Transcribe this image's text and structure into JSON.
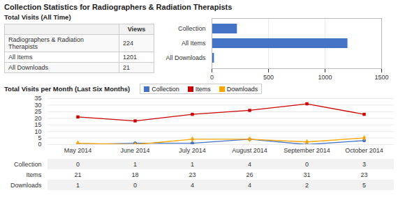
{
  "chart_data": [
    {
      "type": "table",
      "title": "Collection Statistics for Radiographers & Radiation Therapists",
      "subtitle": "Total Visits (All Time)",
      "columns": [
        "Views"
      ],
      "categories": [
        "Radiographers & Radiation\nTherapists",
        "All Items",
        "All Downloads"
      ],
      "values": [
        224,
        1201,
        21
      ]
    },
    {
      "type": "bar",
      "orientation": "horizontal",
      "categories": [
        "Collection",
        "All Items",
        "All Downloads"
      ],
      "values": [
        224,
        1201,
        21
      ],
      "color": "#4472C4",
      "xlim": [
        0,
        1500
      ],
      "xticks": [
        0,
        500,
        1000,
        1500
      ],
      "grid": true
    },
    {
      "type": "line",
      "subtitle": "Total Visits per Month (Last Six Months)",
      "categories": [
        "May 2014",
        "June 2014",
        "July 2014",
        "August 2014",
        "September 2014",
        "October 2014"
      ],
      "series": [
        {
          "name": "Collection",
          "color": "#4472C4",
          "marker": "circle",
          "values": [
            0,
            1,
            1,
            4,
            0,
            3
          ]
        },
        {
          "name": "Items",
          "color": "#CC0000",
          "marker": "square",
          "values": [
            21,
            18,
            23,
            26,
            31,
            23
          ]
        },
        {
          "name": "Downloads",
          "color": "#FFA500",
          "marker": "diamond",
          "values": [
            1,
            0,
            4,
            4,
            2,
            5
          ]
        }
      ],
      "ylim": [
        0,
        35
      ],
      "yticks": [
        0,
        5,
        10,
        15,
        20,
        25,
        30,
        35
      ],
      "grid": true,
      "legend": "top-left",
      "tick_labels": "y"
    },
    {
      "type": "table",
      "categories": [
        "May 2014",
        "June 2014",
        "July 2014",
        "August 2014",
        "September 2014",
        "October 2014"
      ],
      "series": [
        {
          "name": "Collection",
          "values": [
            0,
            1,
            1,
            4,
            0,
            3
          ]
        },
        {
          "name": "Items",
          "values": [
            21,
            18,
            23,
            26,
            31,
            23
          ]
        },
        {
          "name": "Downloads",
          "values": [
            1,
            0,
            4,
            4,
            2,
            5
          ]
        }
      ]
    }
  ]
}
